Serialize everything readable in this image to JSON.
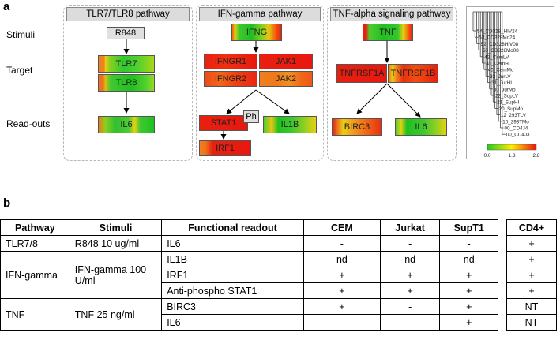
{
  "panel_a_label": "a",
  "panel_b_label": "b",
  "row_labels": {
    "stimuli": "Stimuli",
    "target": "Target",
    "readouts": "Read-outs"
  },
  "pathways": {
    "tlr": {
      "title": "TLR7/TLR8 pathway",
      "stimulus": "R848",
      "targets": [
        "TLR7",
        "TLR8"
      ],
      "readouts": [
        "IL6"
      ]
    },
    "ifn": {
      "title": "IFN-gamma pathway",
      "stimulus": "IFNG",
      "targets": [
        "IFNGR1",
        "JAK1",
        "IFNGR2",
        "JAK2"
      ],
      "readouts": [
        "STAT1",
        "IL1B",
        "IRF1"
      ],
      "ph_label": "Ph"
    },
    "tnf": {
      "title": "TNF-alpha signaling pathway",
      "stimulus": "TNF",
      "targets": [
        "TNFRSF1A",
        "TNFRSF1B"
      ],
      "readouts": [
        "BIRC3",
        "IL6"
      ]
    }
  },
  "samples": [
    "54_CD328_HIV24",
    "53_CD328Mo24",
    "52_CD328HIV08",
    "50_CD328Mo08",
    "42_CemLV",
    "41_CemHI",
    "40_CemMo",
    "32_JurLV",
    "31_JurHI",
    "30_JurMo",
    "22_SupLV",
    "21_SupHI",
    "20_SupMo",
    "12_293TLV",
    "10_293TMo",
    "00_CD4J4",
    "00_CD4J3"
  ],
  "color_scale": {
    "ticks": [
      "0.0",
      "1.3",
      "2.8"
    ],
    "low": "#22cc22",
    "mid": "#ffee00",
    "high": "#ee1111"
  },
  "table": {
    "headers": [
      "Pathway",
      "Stimuli",
      "Functional readout",
      "CEM",
      "Jurkat",
      "SupT1",
      "CD4+"
    ],
    "rows": [
      {
        "pathway": "TLR7/8",
        "stimuli": "R848 10 ug/ml",
        "readout": "IL6",
        "cem": "-",
        "jurkat": "-",
        "supt1": "-",
        "cd4": "+"
      },
      {
        "pathway": "IFN-gamma",
        "stimuli": "IFN-gamma 100 U/ml",
        "readout": "IL1B",
        "cem": "nd",
        "jurkat": "nd",
        "supt1": "nd",
        "cd4": "+"
      },
      {
        "pathway": "",
        "stimuli": "",
        "readout": "IRF1",
        "cem": "+",
        "jurkat": "+",
        "supt1": "+",
        "cd4": "+"
      },
      {
        "pathway": "",
        "stimuli": "",
        "readout": "Anti-phospho STAT1",
        "cem": "+",
        "jurkat": "+",
        "supt1": "+",
        "cd4": "+"
      },
      {
        "pathway": "TNF",
        "stimuli": "TNF 25 ng/ml",
        "readout": "BIRC3",
        "cem": "+",
        "jurkat": "-",
        "supt1": "+",
        "cd4": "NT"
      },
      {
        "pathway": "",
        "stimuli": "",
        "readout": "IL6",
        "cem": "-",
        "jurkat": "-",
        "supt1": "+",
        "cd4": "NT"
      }
    ]
  }
}
